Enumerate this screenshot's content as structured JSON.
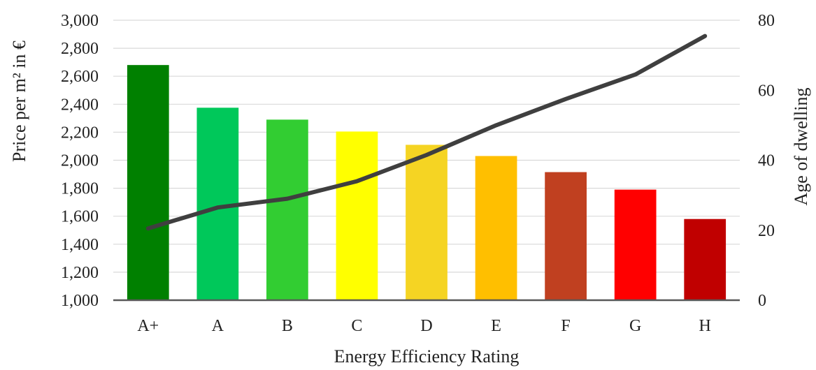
{
  "chart_data": {
    "type": "bar",
    "categories": [
      "A+",
      "A",
      "B",
      "C",
      "D",
      "E",
      "F",
      "G",
      "H"
    ],
    "series": [
      {
        "type": "bar",
        "axis": "left",
        "values": [
          2680,
          2375,
          2290,
          2205,
          2110,
          2030,
          1915,
          1790,
          1580
        ],
        "colors": [
          "#008000",
          "#00C85A",
          "#32CD32",
          "#FFFF00",
          "#F5D423",
          "#FFBF00",
          "#C04020",
          "#FF0000",
          "#C00000"
        ]
      },
      {
        "type": "line",
        "axis": "right",
        "values": [
          20.5,
          26.5,
          29,
          34,
          41.5,
          50,
          57.5,
          64.5,
          75.5
        ],
        "color": "#3F3F3F"
      }
    ],
    "xlabel": "Energy Efficiency Rating",
    "ylabel": "Price per m² in €",
    "y2label": "Age of dwelling",
    "ylim": [
      1000,
      3000
    ],
    "y2lim": [
      0,
      80
    ],
    "yticks": [
      "1,000",
      "1,200",
      "1,400",
      "1,600",
      "1,800",
      "2,000",
      "2,200",
      "2,400",
      "2,600",
      "2,800",
      "3,000"
    ],
    "y2ticks": [
      "0",
      "20",
      "40",
      "60",
      "80"
    ],
    "grid": true,
    "legend": "none"
  }
}
